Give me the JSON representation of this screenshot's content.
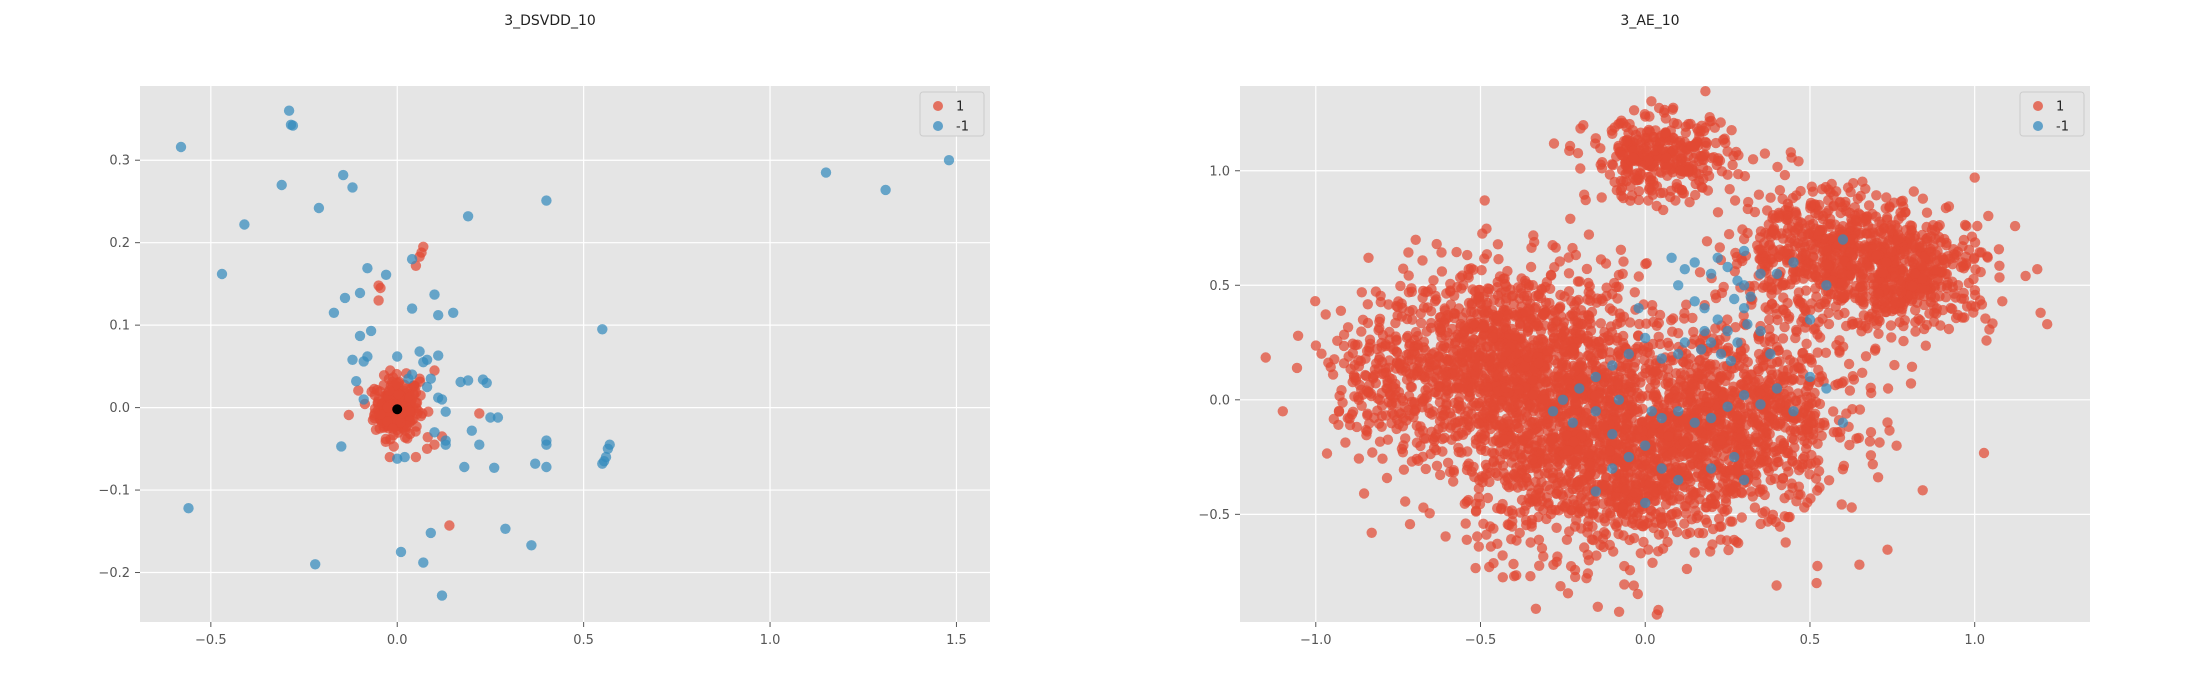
{
  "colors": {
    "positive": "#e24a33",
    "negative": "#348abd",
    "panel": "#e5e5e5",
    "grid": "#ffffff",
    "center": "#000000"
  },
  "chart_data": [
    {
      "type": "scatter",
      "title": "3_DSVDD_10",
      "xlabel": "",
      "ylabel": "",
      "xlim": [
        -0.69,
        1.59
      ],
      "ylim": [
        -0.26,
        0.39
      ],
      "xticks": [
        -0.5,
        0.0,
        0.5,
        1.0,
        1.5
      ],
      "xtick_labels": [
        "−0.5",
        "0.0",
        "0.5",
        "1.0",
        "1.5"
      ],
      "yticks": [
        -0.2,
        -0.1,
        0.0,
        0.1,
        0.2,
        0.3
      ],
      "ytick_labels": [
        "−0.2",
        "−0.1",
        "0.0",
        "0.1",
        "0.2",
        "0.3"
      ],
      "grid": true,
      "legend": {
        "position": "top-right",
        "entries": [
          "1",
          "-1"
        ]
      },
      "center_marker": [
        0.0,
        -0.002
      ],
      "series": [
        {
          "name": "1",
          "color": "#e24a33",
          "clusters": [
            {
              "cx": 0.0,
              "cy": 0.0,
              "sx": 0.03,
              "sy": 0.018,
              "n": 260
            }
          ],
          "points": [
            [
              0.07,
              0.195
            ],
            [
              0.065,
              0.188
            ],
            [
              0.06,
              0.183
            ],
            [
              0.05,
              0.172
            ],
            [
              -0.05,
              0.148
            ],
            [
              -0.045,
              0.145
            ],
            [
              -0.05,
              0.13
            ],
            [
              -0.13,
              -0.009
            ],
            [
              0.22,
              -0.007
            ],
            [
              0.14,
              -0.143
            ],
            [
              0.1,
              -0.045
            ],
            [
              0.08,
              -0.05
            ],
            [
              0.06,
              0.035
            ],
            [
              -0.06,
              0.015
            ],
            [
              0.05,
              -0.06
            ],
            [
              -0.02,
              -0.06
            ],
            [
              0.1,
              0.045
            ],
            [
              0.12,
              -0.035
            ]
          ]
        },
        {
          "name": "-1",
          "color": "#348abd",
          "points": [
            [
              -0.58,
              0.316
            ],
            [
              -0.29,
              0.36
            ],
            [
              -0.285,
              0.343
            ],
            [
              -0.28,
              0.342
            ],
            [
              -0.31,
              0.27
            ],
            [
              -0.41,
              0.222
            ],
            [
              -0.47,
              0.162
            ],
            [
              -0.21,
              0.242
            ],
            [
              -0.145,
              0.282
            ],
            [
              -0.12,
              0.267
            ],
            [
              0.4,
              0.251
            ],
            [
              0.19,
              0.232
            ],
            [
              1.15,
              0.285
            ],
            [
              1.31,
              0.264
            ],
            [
              1.48,
              0.3
            ],
            [
              -0.08,
              0.169
            ],
            [
              -0.03,
              0.161
            ],
            [
              0.04,
              0.18
            ],
            [
              -0.14,
              0.133
            ],
            [
              -0.1,
              0.139
            ],
            [
              -0.17,
              0.115
            ],
            [
              -0.07,
              0.093
            ],
            [
              -0.1,
              0.087
            ],
            [
              0.04,
              0.12
            ],
            [
              0.1,
              0.137
            ],
            [
              0.11,
              0.112
            ],
            [
              0.15,
              0.115
            ],
            [
              0.55,
              0.095
            ],
            [
              0.06,
              0.068
            ],
            [
              0.07,
              0.055
            ],
            [
              0.08,
              0.058
            ],
            [
              0.11,
              0.063
            ],
            [
              -0.08,
              0.062
            ],
            [
              -0.09,
              0.056
            ],
            [
              -0.12,
              0.058
            ],
            [
              0.0,
              0.062
            ],
            [
              0.04,
              0.04
            ],
            [
              0.03,
              0.035
            ],
            [
              0.09,
              0.035
            ],
            [
              0.11,
              0.012
            ],
            [
              0.12,
              0.01
            ],
            [
              0.17,
              0.031
            ],
            [
              0.19,
              0.033
            ],
            [
              0.23,
              0.034
            ],
            [
              0.24,
              0.03
            ],
            [
              -0.11,
              0.032
            ],
            [
              -0.09,
              0.01
            ],
            [
              0.13,
              -0.005
            ],
            [
              0.25,
              -0.012
            ],
            [
              0.27,
              -0.012
            ],
            [
              0.2,
              -0.028
            ],
            [
              0.22,
              -0.045
            ],
            [
              0.4,
              -0.04
            ],
            [
              0.4,
              -0.045
            ],
            [
              0.57,
              -0.045
            ],
            [
              0.565,
              -0.05
            ],
            [
              0.56,
              -0.06
            ],
            [
              0.555,
              -0.065
            ],
            [
              0.55,
              -0.068
            ],
            [
              0.37,
              -0.068
            ],
            [
              0.4,
              -0.072
            ],
            [
              0.26,
              -0.073
            ],
            [
              0.18,
              -0.072
            ],
            [
              0.13,
              -0.04
            ],
            [
              0.13,
              -0.045
            ],
            [
              -0.15,
              -0.047
            ],
            [
              0.0,
              -0.062
            ],
            [
              0.02,
              -0.06
            ],
            [
              -0.56,
              -0.122
            ],
            [
              -0.22,
              -0.19
            ],
            [
              0.01,
              -0.175
            ],
            [
              0.07,
              -0.188
            ],
            [
              0.09,
              -0.152
            ],
            [
              0.12,
              -0.228
            ],
            [
              0.29,
              -0.147
            ],
            [
              0.36,
              -0.167
            ],
            [
              0.1,
              -0.03
            ],
            [
              0.08,
              0.025
            ]
          ]
        }
      ]
    },
    {
      "type": "scatter",
      "title": "3_AE_10",
      "xlabel": "",
      "ylabel": "",
      "xlim": [
        -1.23,
        1.35
      ],
      "ylim": [
        -0.97,
        1.37
      ],
      "xticks": [
        -1.0,
        -0.5,
        0.0,
        0.5,
        1.0
      ],
      "xtick_labels": [
        "−1.0",
        "−0.5",
        "0.0",
        "0.5",
        "1.0"
      ],
      "yticks": [
        -0.5,
        0.0,
        0.5,
        1.0
      ],
      "ytick_labels": [
        "−0.5",
        "0.0",
        "0.5",
        "1.0"
      ],
      "grid": true,
      "legend": {
        "position": "top-right",
        "entries": [
          "1",
          "-1"
        ]
      },
      "series": [
        {
          "name": "1",
          "color": "#e24a33",
          "clusters": [
            {
              "cx": -0.4,
              "cy": 0.15,
              "sx": 0.2,
              "sy": 0.22,
              "n": 1300
            },
            {
              "cx": -0.1,
              "cy": -0.25,
              "sx": 0.22,
              "sy": 0.22,
              "n": 1300
            },
            {
              "cx": 0.3,
              "cy": -0.05,
              "sx": 0.17,
              "sy": 0.2,
              "n": 800
            },
            {
              "cx": 0.55,
              "cy": 0.65,
              "sx": 0.15,
              "sy": 0.14,
              "n": 550
            },
            {
              "cx": 0.8,
              "cy": 0.55,
              "sx": 0.13,
              "sy": 0.12,
              "n": 450
            },
            {
              "cx": 0.05,
              "cy": 1.05,
              "sx": 0.11,
              "sy": 0.09,
              "n": 350
            },
            {
              "cx": -0.75,
              "cy": 0.1,
              "sx": 0.1,
              "sy": 0.15,
              "n": 200
            }
          ],
          "points": [
            [
              -1.1,
              -0.05
            ],
            [
              -0.84,
              0.62
            ],
            [
              1.2,
              0.38
            ],
            [
              1.22,
              0.33
            ],
            [
              1.19,
              0.57
            ],
            [
              1.0,
              0.97
            ],
            [
              0.52,
              -0.8
            ],
            [
              0.65,
              -0.72
            ],
            [
              0.47,
              0.56
            ],
            [
              0.7,
              0.8
            ]
          ]
        },
        {
          "name": "-1",
          "color": "#348abd",
          "points": [
            [
              0.1,
              0.5
            ],
            [
              0.12,
              0.57
            ],
            [
              0.15,
              0.6
            ],
            [
              0.2,
              0.55
            ],
            [
              0.22,
              0.62
            ],
            [
              0.25,
              0.58
            ],
            [
              0.28,
              0.52
            ],
            [
              0.3,
              0.5
            ],
            [
              0.32,
              0.45
            ],
            [
              0.27,
              0.44
            ],
            [
              0.15,
              0.43
            ],
            [
              0.18,
              0.4
            ],
            [
              0.22,
              0.35
            ],
            [
              0.25,
              0.3
            ],
            [
              0.28,
              0.25
            ],
            [
              0.31,
              0.33
            ],
            [
              0.35,
              0.3
            ],
            [
              0.2,
              0.25
            ],
            [
              0.17,
              0.22
            ],
            [
              0.23,
              0.2
            ],
            [
              0.26,
              0.17
            ],
            [
              0.1,
              0.2
            ],
            [
              0.05,
              0.18
            ],
            [
              0.0,
              0.27
            ],
            [
              -0.05,
              0.2
            ],
            [
              -0.1,
              0.15
            ],
            [
              -0.15,
              0.1
            ],
            [
              -0.2,
              0.05
            ],
            [
              -0.25,
              0.0
            ],
            [
              -0.28,
              -0.05
            ],
            [
              -0.22,
              -0.1
            ],
            [
              -0.15,
              -0.05
            ],
            [
              -0.08,
              0.0
            ],
            [
              0.02,
              -0.05
            ],
            [
              0.05,
              -0.08
            ],
            [
              0.1,
              -0.05
            ],
            [
              0.15,
              -0.1
            ],
            [
              0.2,
              -0.08
            ],
            [
              0.25,
              -0.03
            ],
            [
              0.3,
              0.02
            ],
            [
              0.35,
              -0.02
            ],
            [
              0.4,
              0.05
            ],
            [
              0.45,
              -0.05
            ],
            [
              0.5,
              0.1
            ],
            [
              0.55,
              0.05
            ],
            [
              0.6,
              -0.1
            ],
            [
              0.0,
              -0.2
            ],
            [
              -0.05,
              -0.25
            ],
            [
              -0.1,
              -0.3
            ],
            [
              0.05,
              -0.3
            ],
            [
              0.1,
              -0.35
            ],
            [
              0.2,
              -0.3
            ],
            [
              0.3,
              -0.35
            ],
            [
              0.0,
              -0.45
            ],
            [
              -0.15,
              -0.4
            ],
            [
              0.5,
              0.35
            ],
            [
              0.55,
              0.5
            ],
            [
              0.4,
              0.55
            ],
            [
              -0.1,
              -0.15
            ],
            [
              0.35,
              0.55
            ],
            [
              0.6,
              0.7
            ],
            [
              0.45,
              0.6
            ],
            [
              0.12,
              0.25
            ],
            [
              0.18,
              0.3
            ],
            [
              0.3,
              0.4
            ],
            [
              -0.02,
              0.4
            ],
            [
              0.08,
              0.62
            ],
            [
              0.3,
              0.65
            ],
            [
              0.27,
              -0.25
            ],
            [
              0.38,
              0.2
            ]
          ]
        }
      ]
    }
  ]
}
